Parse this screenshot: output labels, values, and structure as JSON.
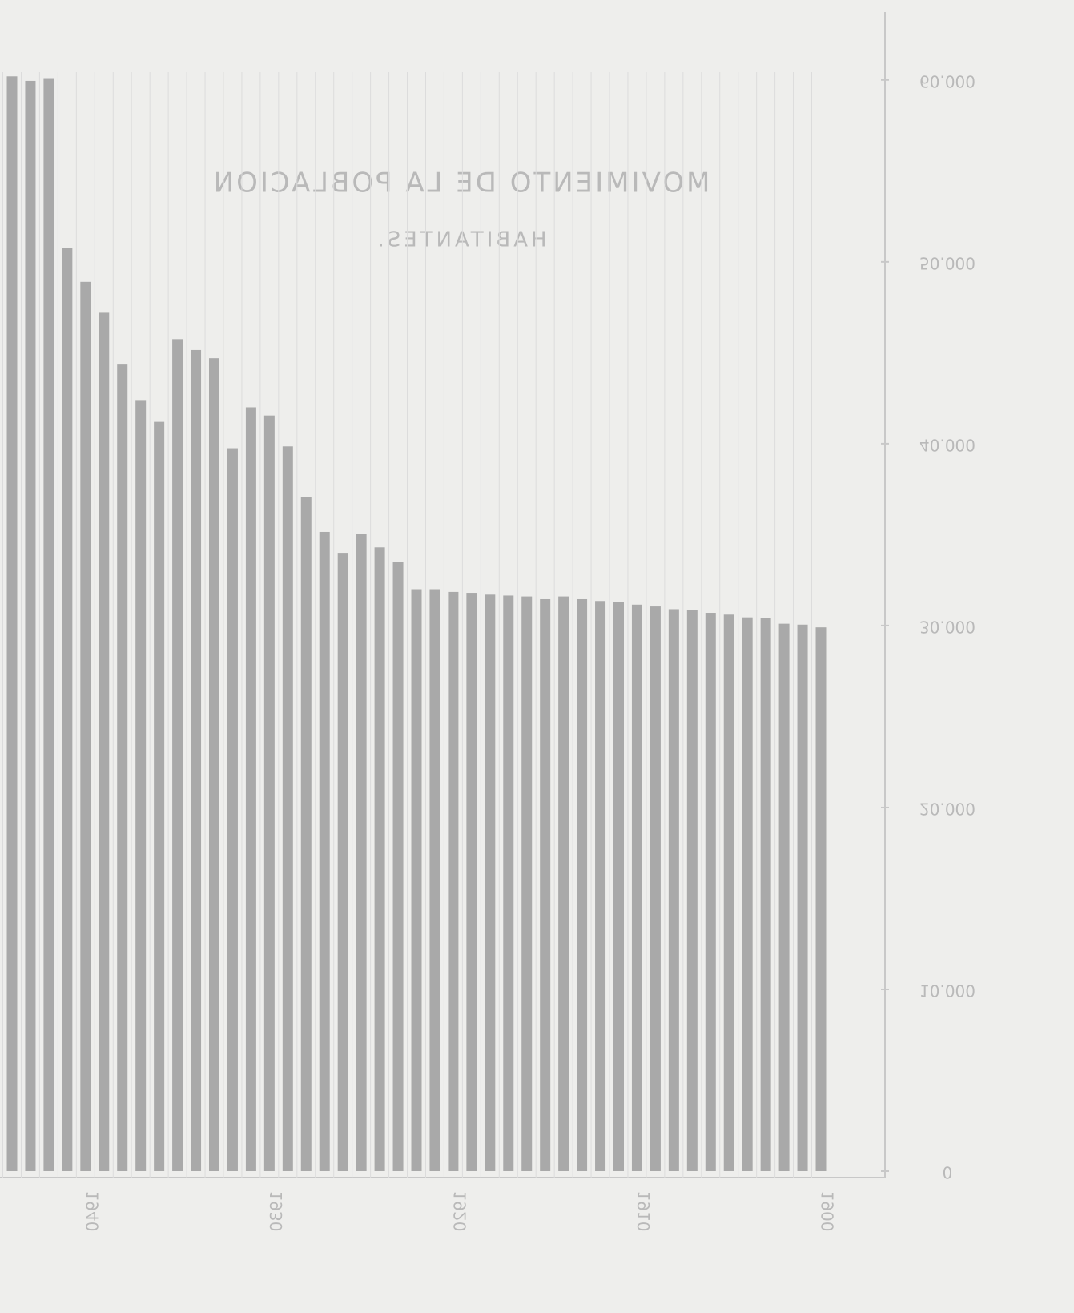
{
  "chart_data": {
    "type": "bar",
    "title": "MOVIMIENTO DE LA POBLACION",
    "subtitle": "HABITANTES.",
    "categories": [
      "1900",
      null,
      null,
      null,
      null,
      null,
      null,
      null,
      null,
      null,
      "1910",
      null,
      null,
      null,
      null,
      null,
      null,
      null,
      null,
      null,
      "1920",
      null,
      null,
      null,
      null,
      null,
      null,
      null,
      null,
      null,
      "1930",
      null,
      null,
      null,
      null,
      null,
      null,
      null,
      null,
      null,
      "1940",
      null,
      null,
      null,
      null
    ],
    "values": [
      29900,
      30050,
      30100,
      30400,
      30450,
      30600,
      30700,
      30850,
      30900,
      31050,
      31150,
      31300,
      31350,
      31450,
      31600,
      31450,
      31600,
      31650,
      31700,
      31800,
      31850,
      32000,
      32000,
      33500,
      34300,
      35050,
      34000,
      35150,
      37050,
      39850,
      41550,
      42000,
      39750,
      44700,
      45150,
      45750,
      41200,
      42400,
      44350,
      47200,
      48900,
      50750,
      60100,
      59950,
      60200
    ],
    "color": "#a9a9a9",
    "ylim": [
      0,
      64000
    ],
    "yticks": [
      0,
      {
        "value": 10000,
        "label": "10.000"
      },
      {
        "value": 20000,
        "label": "20.000"
      },
      {
        "value": 30000,
        "label": "30.000"
      },
      {
        "value": 40000,
        "label": "40.000"
      },
      {
        "value": 50000,
        "label": "50.000"
      },
      {
        "value": 60000,
        "label": "60.000"
      }
    ],
    "mirrored": true
  }
}
